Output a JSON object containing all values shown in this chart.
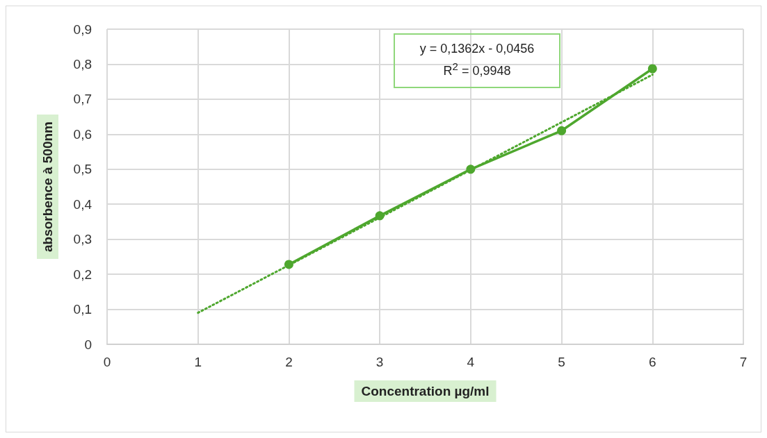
{
  "chart_data": {
    "type": "line",
    "xlabel": "Concentration µg/ml",
    "ylabel": "absorbence à 500nm",
    "annotations": [
      "y = 0,1362x - 0,0456\nR$^{2}$ = 0,9948"
    ],
    "x": [
      2,
      3,
      4,
      5,
      6
    ],
    "series": [
      {
        "color": "#4ea72e",
        "values": [
          0.228,
          0.367,
          0.5,
          0.61,
          0.787
        ],
        "marker": "circle",
        "line_style": "solid"
      },
      {
        "type": "line",
        "color": "#4ea72e",
        "x": [
          1,
          6
        ],
        "values": [
          0.09,
          0.77
        ],
        "marker": "none",
        "line_style": "dotted"
      }
    ],
    "xlim": [
      0,
      7
    ],
    "xticks": [
      0,
      1,
      2,
      3,
      4,
      5,
      6,
      7
    ],
    "ylim": [
      0,
      0.9
    ],
    "yticks": [
      0,
      {
        "value": 0.1,
        "label": "0,1"
      },
      {
        "value": 0.2,
        "label": "0,2"
      },
      {
        "value": 0.3,
        "label": "0,3"
      },
      {
        "value": 0.4,
        "label": "0,4"
      },
      {
        "value": 0.5,
        "label": "0,5"
      },
      {
        "value": 0.6,
        "label": "0,6"
      },
      {
        "value": 0.7,
        "label": "0,7"
      },
      {
        "value": 0.8,
        "label": "0,8"
      },
      {
        "value": 0.9,
        "label": "0,9"
      }
    ],
    "grid": true
  }
}
